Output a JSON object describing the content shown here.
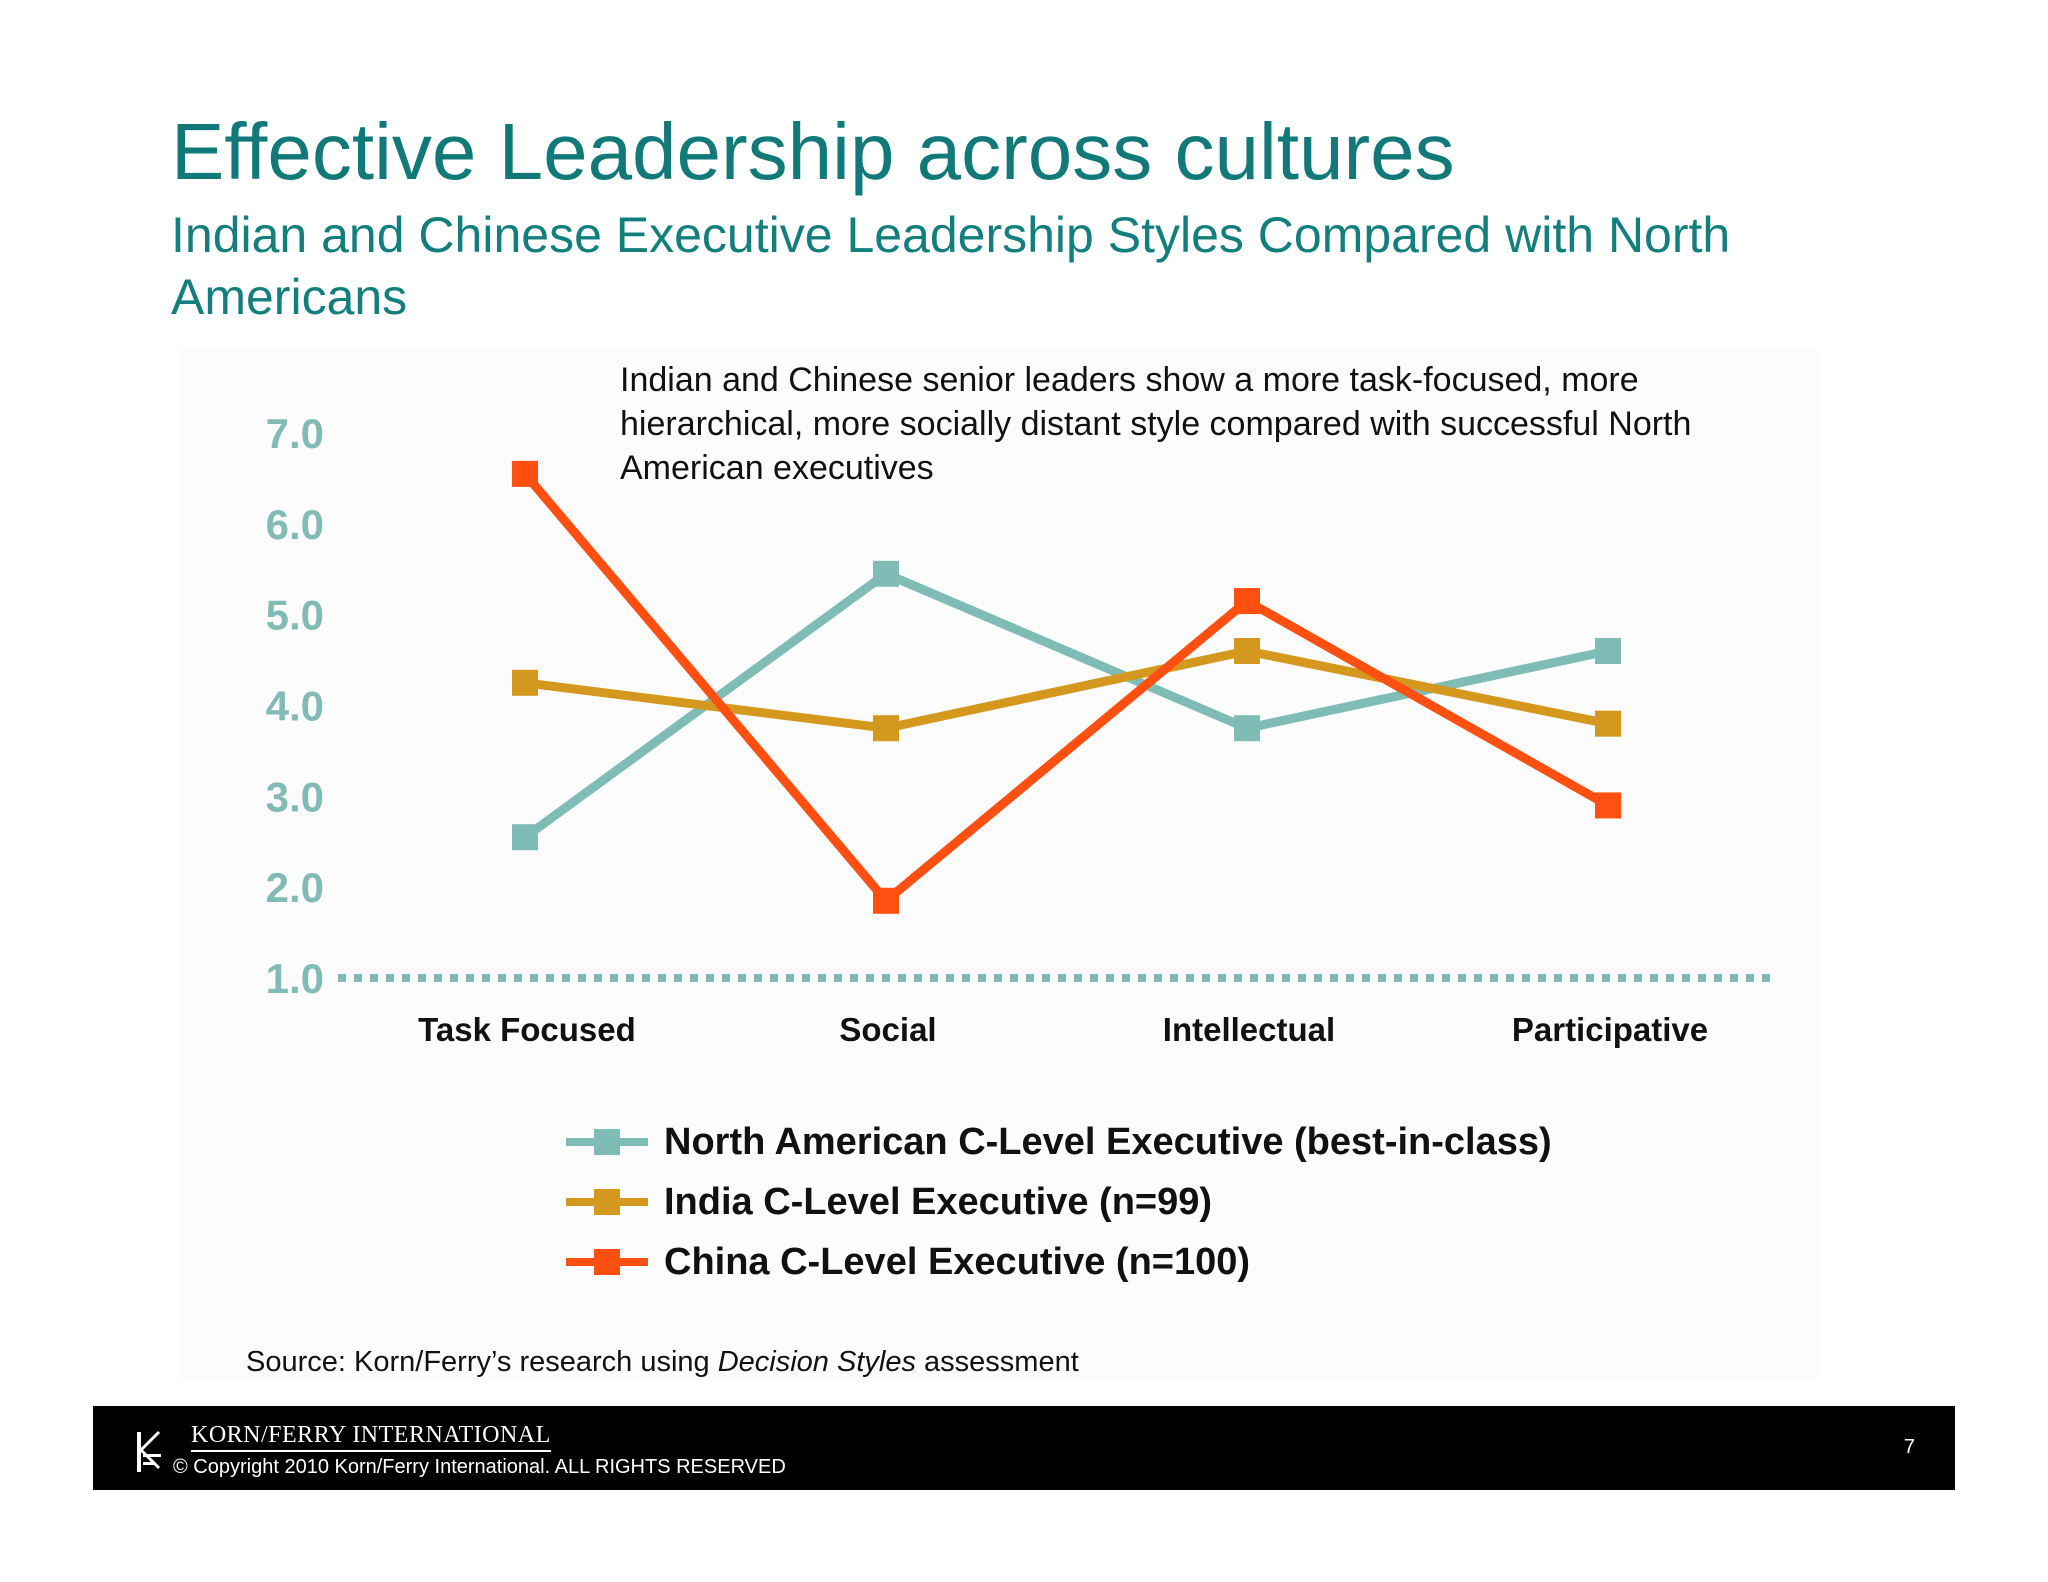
{
  "header": {
    "title": "Effective Leadership across cultures",
    "subtitle": "Indian and Chinese Executive Leadership Styles Compared with North Americans"
  },
  "callout": "Indian and Chinese senior leaders show a more task-focused, more hierarchical, more socially distant style compared with successful North American executives",
  "source": {
    "prefix": "Source: Korn/Ferry’s research using ",
    "italic": "Decision Styles",
    "suffix": " assessment"
  },
  "footer": {
    "company": "KORN/FERRY INTERNATIONAL",
    "copyright": "© Copyright 2010 Korn/Ferry International. ALL RIGHTS RESERVED",
    "page_number": "7"
  },
  "chart_data": {
    "type": "line",
    "title": "",
    "xlabel": "",
    "ylabel": "",
    "categories": [
      "Task Focused",
      "Social",
      "Intellectual",
      "Participative"
    ],
    "y_ticks": [
      "1.0",
      "2.0",
      "3.0",
      "4.0",
      "5.0",
      "6.0",
      "7.0"
    ],
    "ylim": [
      1.0,
      7.0
    ],
    "grid": false,
    "legend_position": "bottom",
    "series": [
      {
        "name": "North American C-Level Executive (best-in-class)",
        "color": "#7fbcb6",
        "values": [
          2.55,
          5.45,
          3.75,
          4.6
        ]
      },
      {
        "name": "India C-Level Executive (n=99)",
        "color": "#d4981f",
        "values": [
          4.25,
          3.75,
          4.6,
          3.8
        ]
      },
      {
        "name": "China C-Level Executive (n=100)",
        "color": "#ff5011",
        "values": [
          6.55,
          1.85,
          5.15,
          2.9
        ]
      }
    ],
    "colors": {
      "axis_labels": "#82bbb5",
      "baseline": "#7fbcb6"
    }
  }
}
